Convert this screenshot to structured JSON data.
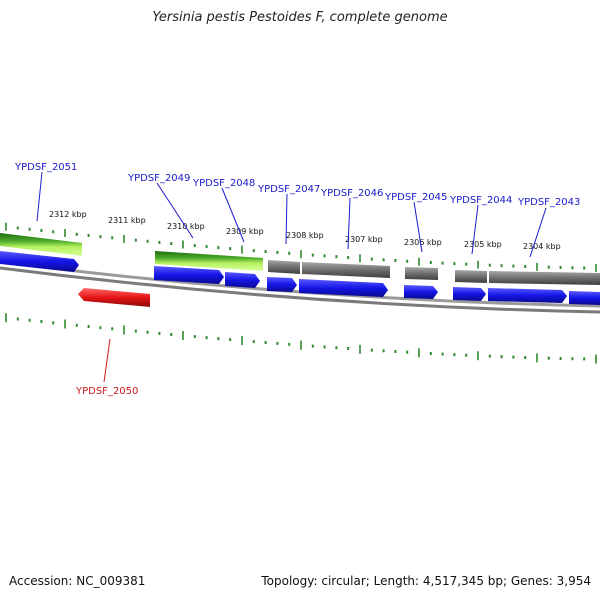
{
  "title": "Yersinia pestis Pestoides F, complete genome",
  "footer": {
    "accession": "Accession: NC_009381",
    "summary": "Topology: circular; Length: 4,517,345 bp; Genes: 3,954"
  },
  "colors": {
    "forward_cds": "#1515e6",
    "reverse_cds": "#e61414",
    "gene_green": "#3a9a1e",
    "gene_light_green": "#b4f060",
    "other_feature": "#6e6e6e",
    "backbone": "#8c8c8c",
    "tick": "#2e8b2e",
    "label_forward": "#1a1acc",
    "label_reverse": "#cc1a1a"
  },
  "kbp_labels": [
    "2312 kbp",
    "2311 kbp",
    "2310 kbp",
    "2309 kbp",
    "2308 kbp",
    "2307 kbp",
    "2306 kbp",
    "2305 kbp",
    "2304 kbp"
  ],
  "genes": [
    {
      "label": "YPDSF_2051",
      "strand": "forward"
    },
    {
      "label": "YPDSF_2049",
      "strand": "forward"
    },
    {
      "label": "YPDSF_2048",
      "strand": "forward"
    },
    {
      "label": "YPDSF_2047",
      "strand": "forward"
    },
    {
      "label": "YPDSF_2046",
      "strand": "forward"
    },
    {
      "label": "YPDSF_2045",
      "strand": "forward"
    },
    {
      "label": "YPDSF_2044",
      "strand": "forward"
    },
    {
      "label": "YPDSF_2043",
      "strand": "forward"
    },
    {
      "label": "YPDSF_2050",
      "strand": "reverse"
    }
  ]
}
